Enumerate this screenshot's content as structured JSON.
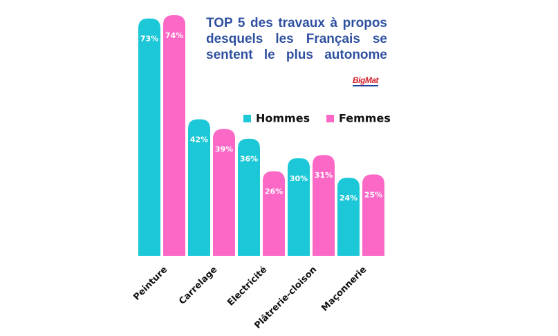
{
  "chart_data": {
    "type": "bar",
    "title": "TOP 5 des travaux à propos desquels les Français se sentent le plus autonome",
    "logo": "BigMat",
    "categories": [
      "Peinture",
      "Carrelage",
      "Electricité",
      "Plâtrerie-cloison",
      "Maçonnerie"
    ],
    "series": [
      {
        "name": "Hommes",
        "color": "#1cc8d8",
        "values": [
          73,
          42,
          36,
          30,
          24
        ],
        "value_labels": [
          "73%",
          "42%",
          "36%",
          "30%",
          "24%"
        ]
      },
      {
        "name": "Femmes",
        "color": "#fb68c6",
        "values": [
          74,
          39,
          26,
          31,
          25
        ],
        "value_labels": [
          "74%",
          "39%",
          "26%",
          "31%",
          "25%"
        ]
      }
    ]
  }
}
